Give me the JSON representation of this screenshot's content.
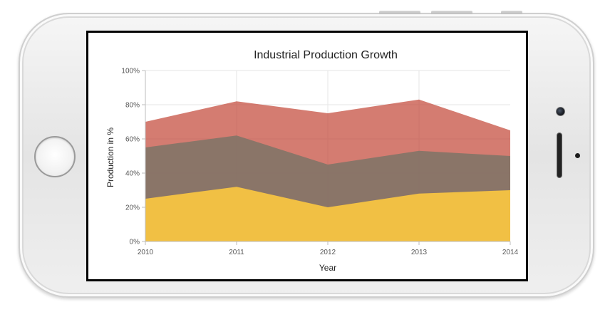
{
  "device": {
    "type": "smartphone-landscape"
  },
  "chart_data": {
    "type": "area",
    "title": "Industrial Production Growth",
    "xlabel": "Year",
    "ylabel": "Production in %",
    "categories": [
      "2010",
      "2011",
      "2012",
      "2013",
      "2014"
    ],
    "ylim": [
      0,
      100
    ],
    "y_ticks": [
      0,
      20,
      40,
      60,
      80,
      100
    ],
    "y_tick_labels": [
      "0%",
      "20%",
      "40%",
      "60%",
      "80%",
      "100%"
    ],
    "grid": true,
    "stacked": false,
    "series": [
      {
        "values": [
          70,
          82,
          75,
          83,
          65
        ],
        "color": "#c4493a",
        "opacity": 0.72
      },
      {
        "values": [
          55,
          62,
          45,
          53,
          50
        ],
        "color": "#7f7466",
        "opacity": 0.88
      },
      {
        "values": [
          25,
          32,
          20,
          28,
          30
        ],
        "color": "#ffcb3f",
        "opacity": 0.88
      }
    ]
  }
}
